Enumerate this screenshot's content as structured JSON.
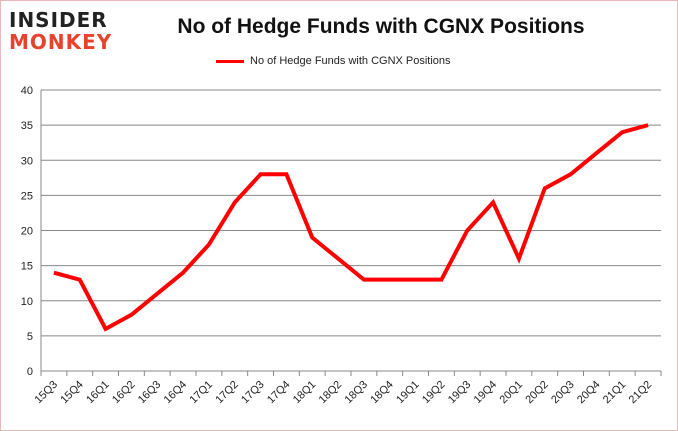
{
  "logo": {
    "line1": "INSIDER",
    "line2": "MONKEY"
  },
  "chart_data": {
    "type": "line",
    "title": "No of Hedge Funds with CGNX Positions",
    "categories": [
      "15Q3",
      "15Q4",
      "16Q1",
      "16Q2",
      "16Q3",
      "16Q4",
      "17Q1",
      "17Q2",
      "17Q3",
      "17Q4",
      "18Q1",
      "18Q2",
      "18Q3",
      "18Q4",
      "19Q1",
      "19Q2",
      "19Q3",
      "19Q4",
      "20Q1",
      "20Q2",
      "20Q3",
      "20Q4",
      "21Q1",
      "21Q2"
    ],
    "series": [
      {
        "name": "No of Hedge Funds with CGNX Positions",
        "color": "#ff0000",
        "values": [
          14,
          13,
          6,
          8,
          11,
          14,
          18,
          24,
          28,
          28,
          19,
          16,
          13,
          13,
          13,
          13,
          20,
          24,
          16,
          26,
          28,
          31,
          34,
          35
        ]
      }
    ],
    "ylim": [
      0,
      40
    ],
    "yticks": [
      0,
      5,
      10,
      15,
      20,
      25,
      30,
      35,
      40
    ],
    "grid": true,
    "legend": "top-center"
  }
}
